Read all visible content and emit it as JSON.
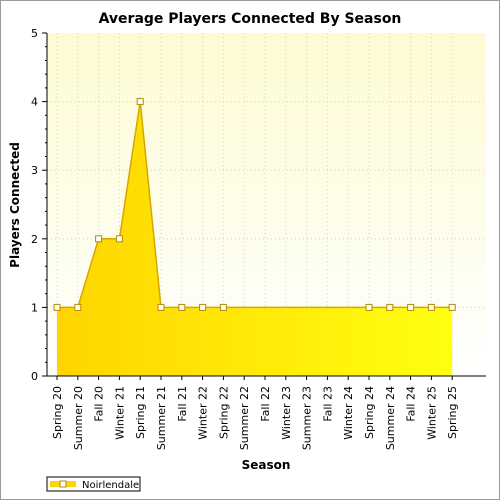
{
  "chart_data": {
    "type": "area",
    "title": "Average Players Connected By Season",
    "xlabel": "Season",
    "ylabel": "Players Connected",
    "ylim": [
      0,
      5
    ],
    "yticks": [
      "0",
      "1",
      "2",
      "3",
      "4",
      "5"
    ],
    "categories": [
      "Spring 20",
      "Summer 20",
      "Fall 20",
      "Winter 21",
      "Spring 21",
      "Summer 21",
      "Fall 21",
      "Winter 22",
      "Spring 22",
      "Summer 22",
      "Fall 22",
      "Winter 23",
      "Summer 23",
      "Fall 23",
      "Winter 24",
      "Spring 24",
      "Summer 24",
      "Fall 24",
      "Winter 25",
      "Spring 25"
    ],
    "series": [
      {
        "name": "Noirlendale",
        "values": [
          1,
          1,
          2,
          2,
          4,
          1,
          1,
          1,
          1,
          1,
          1,
          1,
          1,
          1,
          1,
          1,
          1,
          1,
          1,
          1
        ],
        "markers": [
          true,
          true,
          true,
          true,
          true,
          true,
          true,
          true,
          true,
          false,
          false,
          false,
          false,
          false,
          false,
          true,
          true,
          true,
          true,
          true
        ]
      }
    ],
    "grid": true,
    "legend": "bottom-left",
    "colors": {
      "plot_background_top": "#fdfbd2",
      "plot_background_bottom": "#ffffff",
      "fill_left": "#ffd400",
      "fill_right": "#ffff10",
      "line": "#d4a800",
      "marker_fill": "#ffffff",
      "marker_stroke": "#b58a00",
      "grid": "#d8d2a0"
    }
  }
}
